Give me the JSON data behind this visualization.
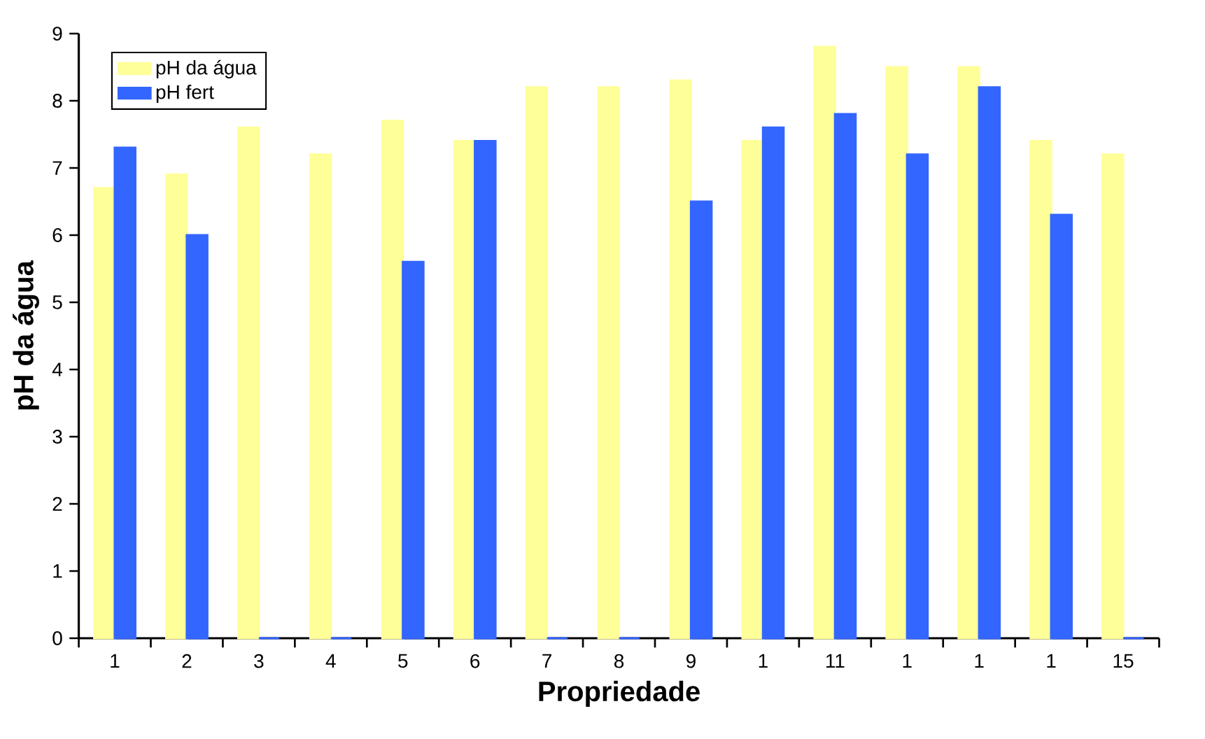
{
  "chart_data": {
    "type": "bar",
    "xlabel": "Propriedade",
    "ylabel": "pH da água",
    "categories": [
      "1",
      "2",
      "3",
      "4",
      "5",
      "6",
      "7",
      "8",
      "9",
      "1",
      "11",
      "1",
      "1",
      "1",
      "15"
    ],
    "series": [
      {
        "name": "pH da água",
        "color": "#ffff99",
        "values": [
          6.7,
          6.9,
          7.6,
          7.2,
          7.7,
          7.4,
          8.2,
          8.2,
          8.3,
          7.4,
          8.8,
          8.5,
          8.5,
          7.4,
          7.2
        ]
      },
      {
        "name": "pH fert",
        "color": "#3366ff",
        "values": [
          7.3,
          6.0,
          0,
          0,
          5.6,
          7.4,
          0,
          0,
          6.5,
          7.6,
          7.8,
          7.2,
          8.2,
          6.3,
          0
        ]
      }
    ],
    "ylim": [
      0,
      9
    ],
    "yticks": [
      0,
      1,
      2,
      3,
      4,
      5,
      6,
      7,
      8,
      9
    ],
    "legend": "top left"
  }
}
